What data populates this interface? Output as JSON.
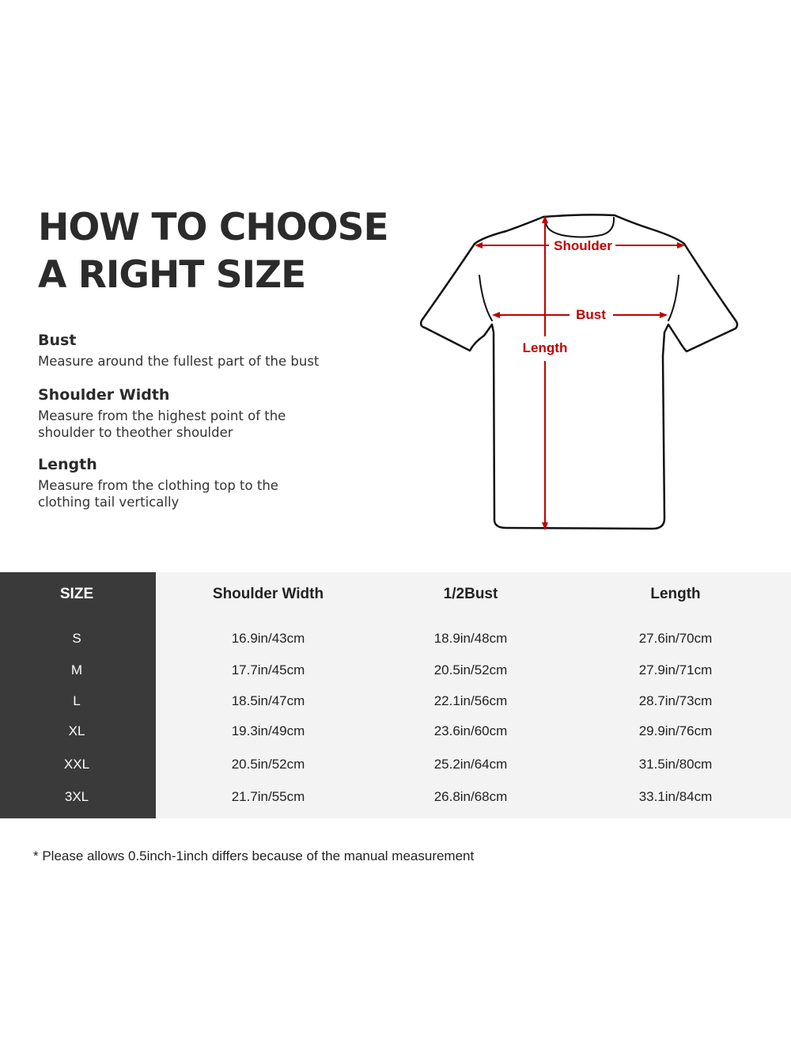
{
  "heading": {
    "line1": "HOW TO CHOOSE",
    "line2": "A RIGHT SIZE"
  },
  "definitions": [
    {
      "term": "Bust",
      "text": "Measure around the fullest part of the bust"
    },
    {
      "term": "Shoulder Width",
      "text": "Measure from the highest point of the shoulder to theother shoulder"
    },
    {
      "term": "Length",
      "text": "Measure from the clothing top to the clothing tail vertically"
    }
  ],
  "diagram": {
    "labels": {
      "shoulder": "Shoulder",
      "bust": "Bust",
      "length": "Length"
    },
    "colors": {
      "outline": "#111111",
      "measure": "#c00000"
    }
  },
  "size_table": {
    "headers": [
      "SIZE",
      "Shoulder Width",
      "1/2Bust",
      "Length"
    ],
    "rows": [
      [
        "S",
        "16.9in/43cm",
        "18.9in/48cm",
        "27.6in/70cm"
      ],
      [
        "M",
        "17.7in/45cm",
        "20.5in/52cm",
        "27.9in/71cm"
      ],
      [
        "L",
        "18.5in/47cm",
        "22.1in/56cm",
        "28.7in/73cm"
      ],
      [
        "XL",
        "19.3in/49cm",
        "23.6in/60cm",
        "29.9in/76cm"
      ],
      [
        "XXL",
        "20.5in/52cm",
        "25.2in/64cm",
        "31.5in/80cm"
      ],
      [
        "3XL",
        "21.7in/55cm",
        "26.8in/68cm",
        "33.1in/84cm"
      ]
    ],
    "colors": {
      "size_column": "#3a3a3a",
      "body": "#f3f3f3"
    }
  },
  "footnote": "* Please allows 0.5inch-1inch differs because of the  manual measurement"
}
